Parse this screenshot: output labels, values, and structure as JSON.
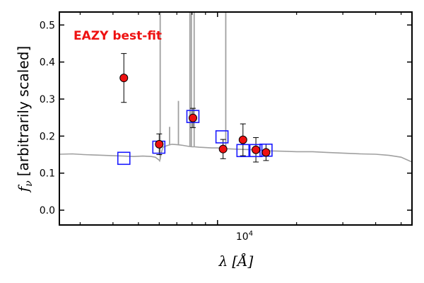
{
  "chart_data": {
    "type": "scatter",
    "annotation": "EAZY best-fit",
    "xlabel_symbol": "λ",
    "xlabel_unit": "[Å]",
    "ylabel_symbol": "f",
    "ylabel_subscript": "ν",
    "ylabel_text": "[arbitrarily scaled]",
    "x_scale": "log",
    "xlim": [
      2500,
      55000
    ],
    "ylim": [
      -0.04,
      0.535
    ],
    "y_ticks": [
      0.0,
      0.1,
      0.2,
      0.3,
      0.4,
      0.5
    ],
    "y_tick_labels": [
      "0.0",
      "0.1",
      "0.2",
      "0.3",
      "0.4",
      "0.5"
    ],
    "x_major_tick": 10000,
    "x_major_tick_label": "10",
    "x_major_tick_exponent": "4",
    "x_minor_ticks": [
      3000,
      4000,
      5000,
      6000,
      7000,
      8000,
      9000,
      20000,
      30000,
      40000,
      50000
    ],
    "grid": false,
    "colors": {
      "observed_fill": "#ee1111",
      "observed_edge": "#000000",
      "model_photometry": "#1a1aff",
      "template": "#a0a0a0",
      "annotation": "#ee1111"
    },
    "series": [
      {
        "kind": "observed",
        "x": [
          4400,
          6000,
          8060,
          10500,
          12500,
          14000,
          15300
        ],
        "y": [
          0.357,
          0.178,
          0.249,
          0.165,
          0.19,
          0.163,
          0.156
        ],
        "yerr": [
          0.066,
          0.028,
          0.026,
          0.026,
          0.043,
          0.033,
          0.022
        ]
      },
      {
        "kind": "model_photometry",
        "x": [
          4400,
          5980,
          8060,
          10400,
          12500,
          14000,
          15300
        ],
        "y": [
          0.14,
          0.17,
          0.253,
          0.198,
          0.161,
          0.161,
          0.162
        ]
      },
      {
        "kind": "template",
        "x": [
          2500,
          2800,
          3100,
          3400,
          3700,
          4000,
          4400,
          4800,
          5200,
          5600,
          5800,
          6000,
          6020,
          6050,
          6100,
          6200,
          6400,
          6700,
          7000,
          7400,
          7800,
          8000,
          8200,
          8500,
          9000,
          9500,
          10000,
          10800,
          11500,
          12500,
          14000,
          16000,
          18000,
          20000,
          23000,
          26000,
          30000,
          35000,
          40000,
          45000,
          50000,
          55000
        ],
        "y": [
          0.151,
          0.152,
          0.15,
          0.149,
          0.148,
          0.147,
          0.146,
          0.145,
          0.146,
          0.145,
          0.143,
          0.135,
          0.133,
          0.138,
          0.153,
          0.17,
          0.174,
          0.178,
          0.177,
          0.175,
          0.172,
          0.171,
          0.171,
          0.17,
          0.169,
          0.168,
          0.168,
          0.166,
          0.165,
          0.164,
          0.163,
          0.16,
          0.159,
          0.158,
          0.158,
          0.156,
          0.154,
          0.152,
          0.151,
          0.148,
          0.143,
          0.13
        ]
      },
      {
        "kind": "template_emission_lines",
        "x": [
          6050,
          6570,
          7100,
          7850,
          7950,
          8150,
          10750
        ],
        "y": [
          0.535,
          0.225,
          0.295,
          0.535,
          0.535,
          0.535,
          0.535
        ]
      }
    ]
  }
}
